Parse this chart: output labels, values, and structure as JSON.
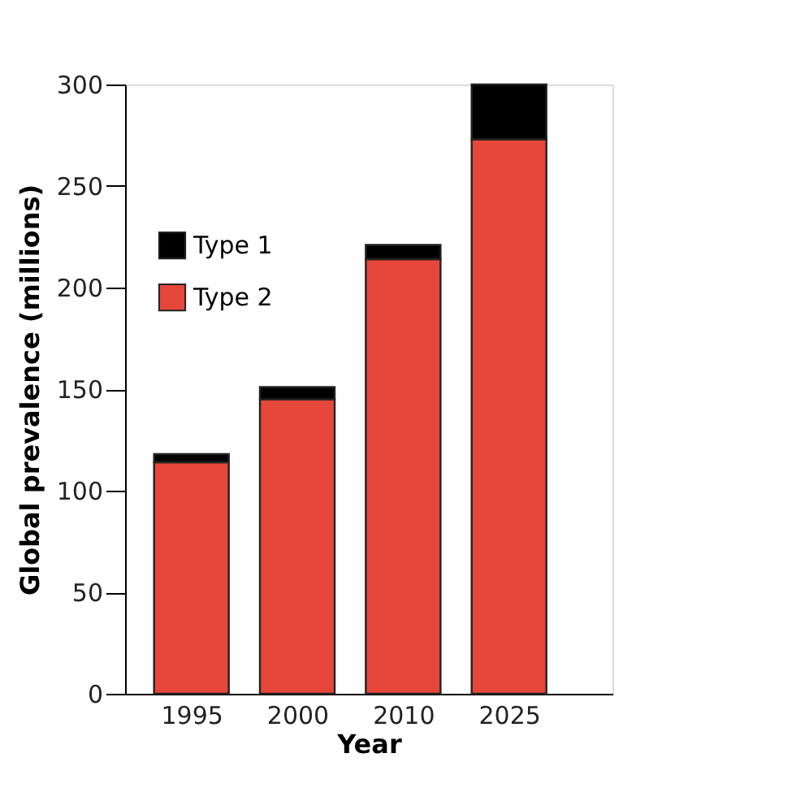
{
  "chart_data": {
    "type": "bar",
    "stacked": true,
    "xlabel": "Year",
    "ylabel": "Global prevalence (millions)",
    "categories": [
      "1995",
      "2000",
      "2010",
      "2025"
    ],
    "series": [
      {
        "name": "Type 2",
        "color": "#e5473b",
        "values": [
          114,
          145,
          214,
          273
        ]
      },
      {
        "name": "Type 1",
        "color": "#000000",
        "values": [
          4,
          6,
          7,
          27
        ]
      }
    ],
    "ylim": [
      0,
      300
    ],
    "yticks": [
      0,
      50,
      100,
      150,
      200,
      250,
      300
    ],
    "grid": false,
    "legend": "top left"
  }
}
